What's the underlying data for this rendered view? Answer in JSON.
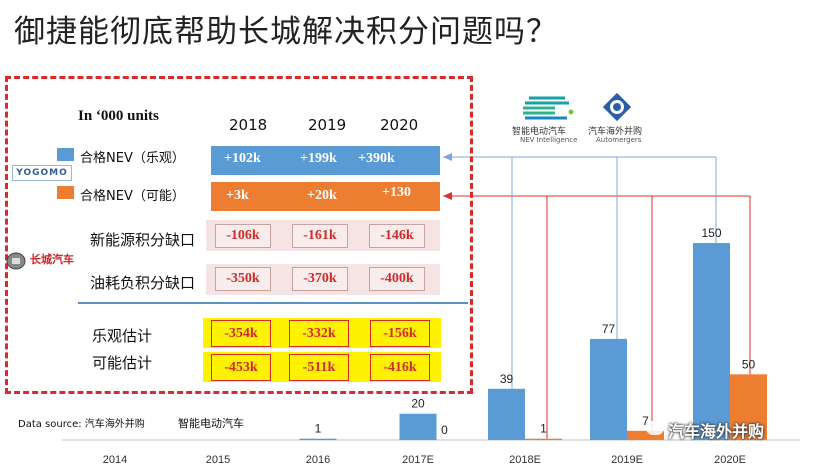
{
  "title": "御捷能彻底帮助长城解决积分问题吗？",
  "table": {
    "units_label": "In ‘000 units",
    "years": [
      "2018",
      "2019",
      "2020"
    ],
    "legend": [
      {
        "label": "合格NEV（乐观）",
        "color": "#5b9bd5"
      },
      {
        "label": "合格NEV（可能）",
        "color": "#ed7d31"
      }
    ],
    "optimistic_row": [
      "+102k",
      "+199k",
      "+390k"
    ],
    "possible_row": [
      "+3k",
      "+20k",
      "+130"
    ],
    "rows": [
      {
        "label": "新能源积分缺口",
        "values": [
          "-106k",
          "-161k",
          "-146k"
        ]
      },
      {
        "label": "油耗负积分缺口",
        "values": [
          "-350k",
          "-370k",
          "-400k"
        ]
      }
    ],
    "estimates": [
      {
        "label": "乐观估计",
        "values": [
          "-354k",
          "-332k",
          "-156k"
        ]
      },
      {
        "label": "可能估计",
        "values": [
          "-453k",
          "-511k",
          "-416k"
        ]
      }
    ]
  },
  "logos": {
    "yogomo": "YOGOMO",
    "great_wall": "长城汽车",
    "nev_name": "智能电动汽车",
    "nev_sub": "NEV Intelligence",
    "am_name": "汽车海外并购",
    "am_sub": "Automergers"
  },
  "source": "Data source: 汽车海外并购",
  "source_extra": "智能电动汽车",
  "watermark": "汽车海外并购",
  "colors": {
    "blue": "#5b9bd5",
    "orange": "#ed7d31",
    "red": "#d92b2b",
    "yellow": "#fff200"
  },
  "chart_data": {
    "type": "bar",
    "categories": [
      "2014",
      "2015",
      "2016",
      "2017E",
      "2018E",
      "2019E",
      "2020E"
    ],
    "series": [
      {
        "values": [
          null,
          null,
          1,
          20,
          39,
          77,
          150
        ],
        "color": "#5b9bd5"
      },
      {
        "values": [
          null,
          null,
          null,
          0,
          1,
          7,
          50
        ],
        "color": "#ed7d31"
      }
    ],
    "ylim": [
      0,
      160
    ],
    "grid": false
  }
}
